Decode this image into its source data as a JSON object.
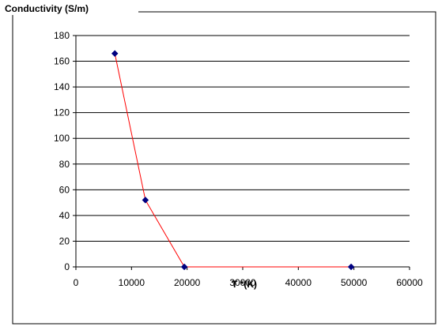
{
  "chart_data": {
    "type": "line",
    "title": "",
    "ylabel": "Conductivity (S/m)",
    "xlabel": "T *(K)",
    "xlim": [
      0,
      60000
    ],
    "ylim": [
      0,
      180
    ],
    "x_ticks": [
      "0",
      "10000",
      "20000",
      "30000",
      "40000",
      "50000",
      "60000"
    ],
    "y_ticks": [
      "0",
      "20",
      "40",
      "60",
      "80",
      "100",
      "120",
      "140",
      "160",
      "180"
    ],
    "grid": "horizontal",
    "legend": "none",
    "series": [
      {
        "x": [
          7000,
          12500,
          19500,
          49500
        ],
        "y": [
          166,
          52,
          0,
          0
        ],
        "line_color": "#ff0000",
        "marker_color": "#000080"
      }
    ]
  }
}
